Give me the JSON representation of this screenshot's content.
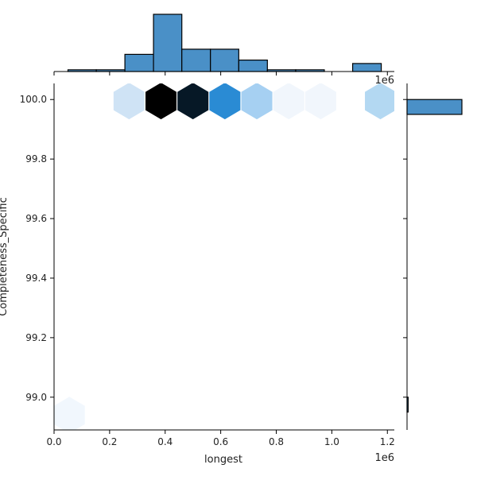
{
  "chart_data": {
    "type": "hexbin",
    "xlabel": "longest",
    "ylabel": "Completeness_Specific",
    "x_offset_label": "1e6",
    "top_offset_label": "1e6",
    "xlim": [
      0,
      1225000
    ],
    "ylim": [
      98.89,
      100.054
    ],
    "x_ticks": [
      {
        "value": 0,
        "label": "0.0"
      },
      {
        "value": 200000,
        "label": "0.2"
      },
      {
        "value": 400000,
        "label": "0.4"
      },
      {
        "value": 600000,
        "label": "0.6"
      },
      {
        "value": 800000,
        "label": "0.8"
      },
      {
        "value": 1000000,
        "label": "1.0"
      },
      {
        "value": 1200000,
        "label": "1.2"
      }
    ],
    "y_ticks": [
      {
        "value": 99.0,
        "label": "99.0"
      },
      {
        "value": 99.2,
        "label": "99.2"
      },
      {
        "value": 99.4,
        "label": "99.4"
      },
      {
        "value": 99.6,
        "label": "99.6"
      },
      {
        "value": 99.8,
        "label": "99.8"
      },
      {
        "value": 100.0,
        "label": "100.0"
      }
    ],
    "hexbins": [
      {
        "x": 55000,
        "y": 98.94,
        "color": "#f1f7fd"
      },
      {
        "x": 270000,
        "y": 99.995,
        "color": "#cfe3f5"
      },
      {
        "x": 385000,
        "y": 99.995,
        "color": "#000000"
      },
      {
        "x": 500000,
        "y": 99.995,
        "color": "#061826"
      },
      {
        "x": 615000,
        "y": 99.995,
        "color": "#2a8bd4"
      },
      {
        "x": 730000,
        "y": 99.995,
        "color": "#a6d0f2"
      },
      {
        "x": 845000,
        "y": 99.995,
        "color": "#f1f6fc"
      },
      {
        "x": 960000,
        "y": 99.995,
        "color": "#f1f6fc"
      },
      {
        "x": 1175000,
        "y": 99.995,
        "color": "#b3d8f2"
      }
    ],
    "marginal_x_histogram": {
      "bins": [
        {
          "x0": 50000,
          "x1": 152000,
          "height": 0.03
        },
        {
          "x0": 152000,
          "x1": 255000,
          "height": 0.03
        },
        {
          "x0": 255000,
          "x1": 358000,
          "height": 0.3
        },
        {
          "x0": 358000,
          "x1": 460000,
          "height": 1.0
        },
        {
          "x0": 460000,
          "x1": 563000,
          "height": 0.39
        },
        {
          "x0": 563000,
          "x1": 665000,
          "height": 0.39
        },
        {
          "x0": 665000,
          "x1": 768000,
          "height": 0.2
        },
        {
          "x0": 768000,
          "x1": 870000,
          "height": 0.03
        },
        {
          "x0": 870000,
          "x1": 973000,
          "height": 0.03
        },
        {
          "x0": 973000,
          "x1": 1075000,
          "height": 0
        },
        {
          "x0": 1075000,
          "x1": 1178000,
          "height": 0.14
        }
      ],
      "color": "#4a90c7"
    },
    "marginal_y_histogram": {
      "bins": [
        {
          "y0": 99.95,
          "y1": 100.0,
          "length": 1.0
        },
        {
          "y0": 98.95,
          "y1": 99.0,
          "length": 0.02
        }
      ],
      "color": "#4a90c7"
    }
  }
}
